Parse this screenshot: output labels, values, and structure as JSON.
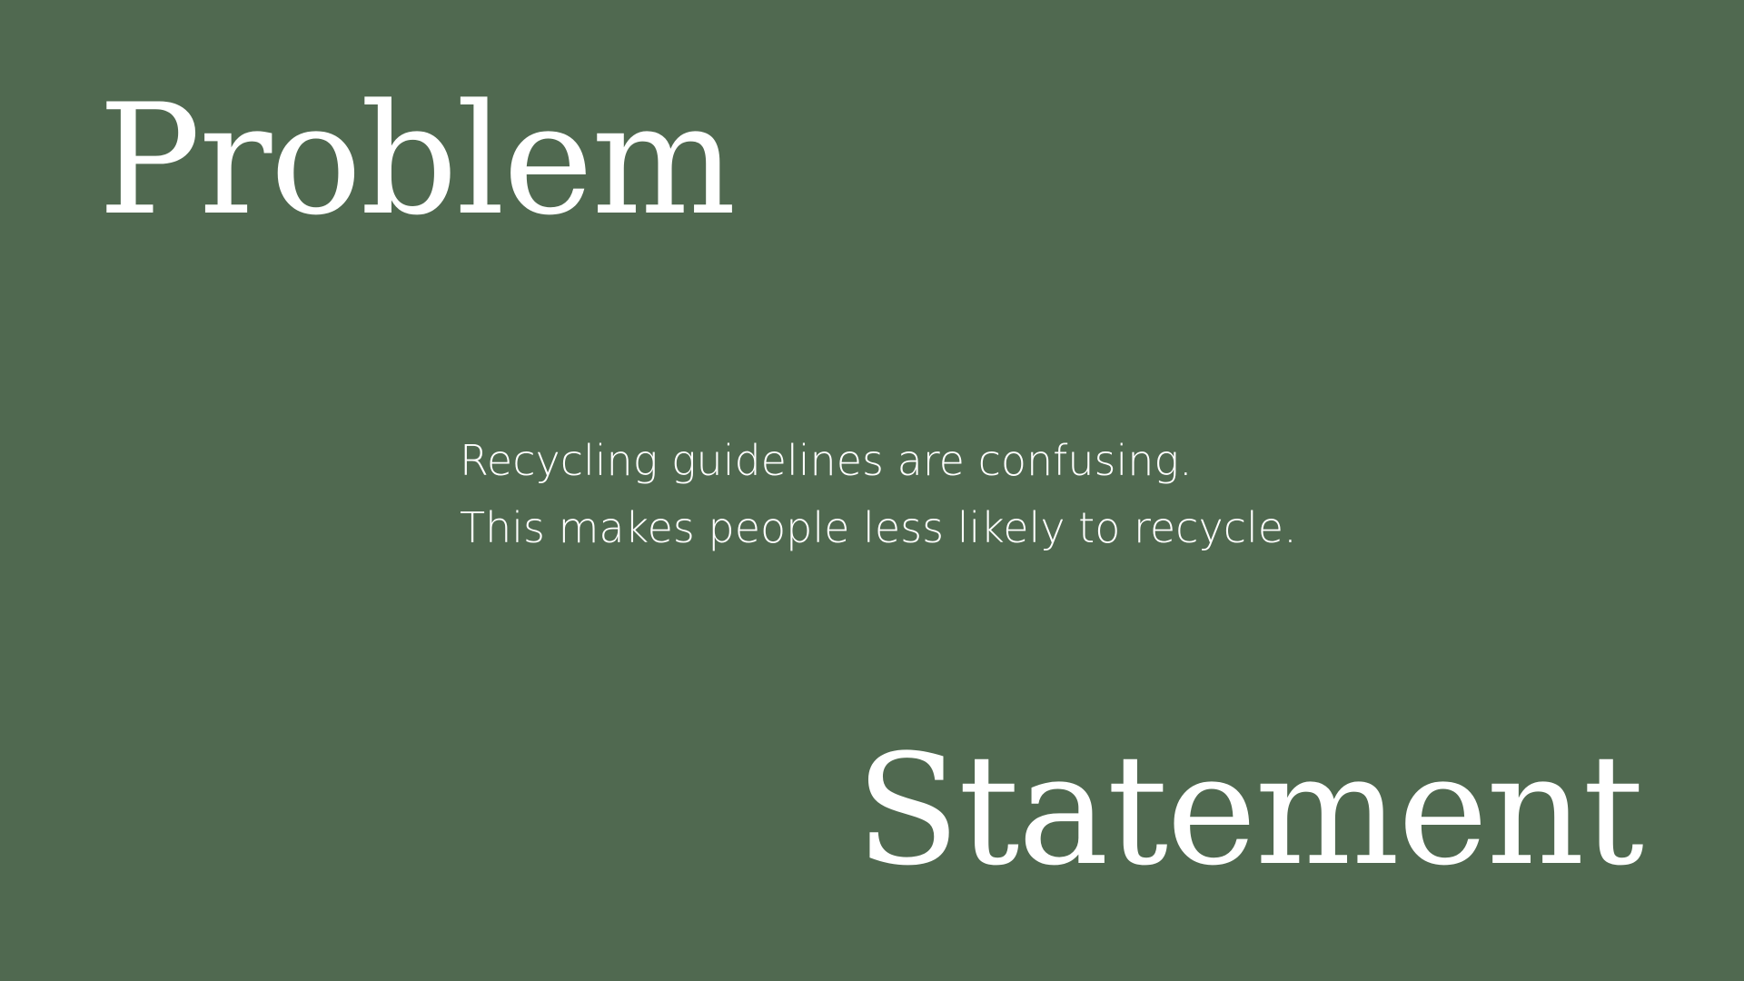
{
  "slide": {
    "title_word_1": "Problem",
    "title_word_2": "Statement",
    "body_lines": [
      "Recycling guidelines are confusing.",
      "This makes people less likely to recycle."
    ],
    "colors": {
      "background": "#506950",
      "text": "#ffffff"
    }
  }
}
